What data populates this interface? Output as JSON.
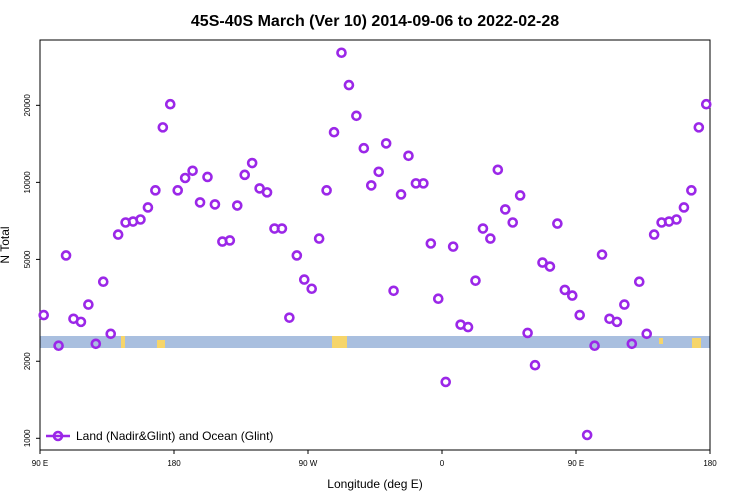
{
  "chart_data": {
    "type": "scatter",
    "title": "45S-40S March (Ver 10)   2014-09-06 to 2022-02-28",
    "xlabel": "Longitude (deg E)",
    "ylabel": "N Total",
    "xlim": [
      90,
      540
    ],
    "ylim": [
      900,
      36000
    ],
    "log_y": true,
    "legend": "bottom-left",
    "xticks": [
      {
        "value": 90,
        "label": "90 E"
      },
      180,
      {
        "value": 270,
        "label": "90 W"
      },
      {
        "value": 360,
        "label": "0"
      },
      {
        "value": 450,
        "label": "90 E"
      },
      {
        "value": 540,
        "label": "180"
      }
    ],
    "yticks": [
      1000,
      2000,
      5000,
      10000,
      20000
    ],
    "series": [
      {
        "name": "Land (Nadir&Glint) and Ocean (Glint)",
        "color": "#9b27e8",
        "x": [
          92.5,
          102.5,
          107.5,
          112.5,
          117.5,
          122.5,
          127.5,
          132.5,
          137.5,
          142.5,
          147.5,
          152.5,
          157.5,
          162.5,
          167.5,
          172.5,
          177.5,
          182.5,
          187.5,
          192.5,
          197.5,
          202.5,
          207.5,
          212.5,
          217.5,
          222.5,
          227.5,
          232.5,
          237.5,
          242.5,
          247.5,
          252.5,
          257.5,
          262.5,
          267.5,
          272.5,
          277.5,
          282.5,
          287.5,
          292.5,
          297.5,
          302.5,
          307.5,
          312.5,
          317.5,
          322.5,
          327.5,
          332.5,
          337.5,
          342.5,
          347.5,
          352.5,
          357.5,
          362.5,
          367.5,
          372.5,
          377.5,
          382.5,
          387.5,
          392.5,
          397.5,
          402.5,
          407.5,
          412.5,
          417.5,
          422.5,
          427.5,
          432.5,
          437.5,
          442.5,
          447.5,
          452.5,
          457.5,
          462.5,
          467.5,
          472.5,
          477.5,
          482.5,
          487.5,
          492.5,
          497.5,
          502.5,
          507.5,
          512.5,
          517.5,
          522.5,
          527.5,
          532.5,
          537.5
        ],
        "values": [
          3030,
          2300,
          5180,
          2930,
          2850,
          3330,
          2340,
          4090,
          2560,
          6250,
          6970,
          7030,
          7160,
          7980,
          9310,
          16400,
          20200,
          9310,
          10400,
          11100,
          8350,
          10500,
          8200,
          5870,
          5930,
          8120,
          10700,
          11900,
          9470,
          9140,
          6600,
          6600,
          2960,
          5180,
          4170,
          3840,
          6030,
          9310,
          15700,
          32100,
          24000,
          18200,
          13600,
          9730,
          11000,
          14200,
          3770,
          8970,
          12700,
          9910,
          9910,
          5770,
          3510,
          1660,
          5610,
          2780,
          2720,
          4130,
          6600,
          6030,
          11200,
          7840,
          6970,
          8890,
          2580,
          1930,
          4860,
          4690,
          6900,
          3800,
          3610,
          3030,
          1030,
          2300,
          5220,
          2930,
          2850,
          3330,
          2340,
          4090,
          2560,
          6250,
          6970,
          7030,
          7160,
          7980,
          9310,
          16400,
          20200
        ]
      }
    ]
  }
}
